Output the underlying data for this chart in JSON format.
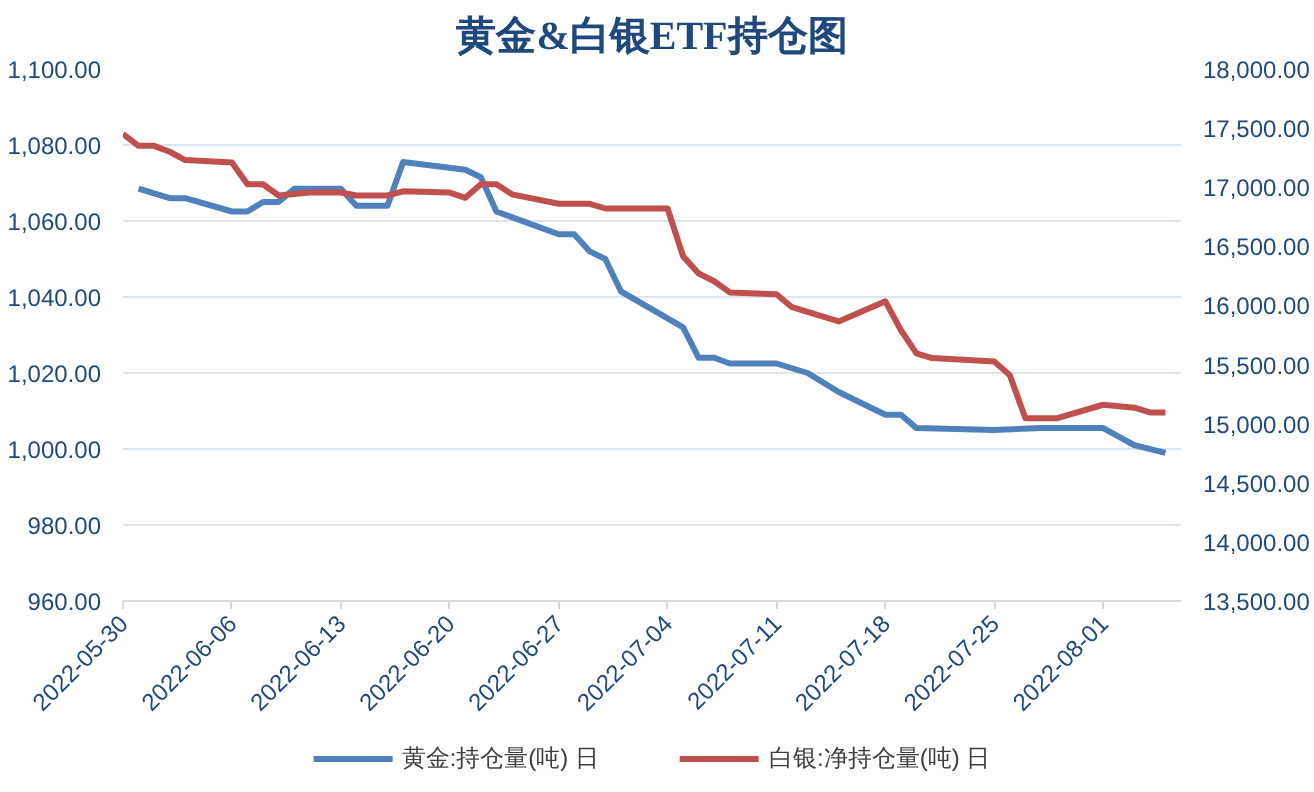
{
  "chart_data": {
    "type": "line",
    "title": "黄金&白银ETF持仓图",
    "xlim": [
      "2022-05-30",
      "2022-08-06"
    ],
    "xticks": [
      "2022-05-30",
      "2022-06-06",
      "2022-06-13",
      "2022-06-20",
      "2022-06-27",
      "2022-07-04",
      "2022-07-11",
      "2022-07-18",
      "2022-07-25",
      "2022-08-01"
    ],
    "ylim": [
      960,
      1100
    ],
    "yticks": [
      {
        "value": 960,
        "label": "960.00"
      },
      {
        "value": 980,
        "label": "980.00"
      },
      {
        "value": 1000,
        "label": "1,000.00"
      },
      {
        "value": 1020,
        "label": "1,020.00"
      },
      {
        "value": 1040,
        "label": "1,040.00"
      },
      {
        "value": 1060,
        "label": "1,060.00"
      },
      {
        "value": 1080,
        "label": "1,080.00"
      },
      {
        "value": 1100,
        "label": "1,100.00"
      }
    ],
    "y2lim": [
      13500,
      18000
    ],
    "y2ticks": [
      {
        "value": 13500,
        "label": "13,500.00"
      },
      {
        "value": 14000,
        "label": "14,000.00"
      },
      {
        "value": 14500,
        "label": "14,500.00"
      },
      {
        "value": 15000,
        "label": "15,000.00"
      },
      {
        "value": 15500,
        "label": "15,500.00"
      },
      {
        "value": 16000,
        "label": "16,000.00"
      },
      {
        "value": 16500,
        "label": "16,500.00"
      },
      {
        "value": 17000,
        "label": "17,000.00"
      },
      {
        "value": 17500,
        "label": "17,500.00"
      },
      {
        "value": 18000,
        "label": "18,000.00"
      }
    ],
    "grid": "y",
    "legend": "bottom",
    "line_style": "solid",
    "marker": "none",
    "series": [
      {
        "name": "黄金:持仓量(吨) 日",
        "color": "#4f81bd",
        "x": [
          "2022-05-31",
          "2022-06-02",
          "2022-06-03",
          "2022-06-06",
          "2022-06-07",
          "2022-06-08",
          "2022-06-09",
          "2022-06-10",
          "2022-06-13",
          "2022-06-14",
          "2022-06-16",
          "2022-06-17",
          "2022-06-21",
          "2022-06-22",
          "2022-06-23",
          "2022-06-27",
          "2022-06-28",
          "2022-06-29",
          "2022-06-30",
          "2022-07-01",
          "2022-07-05",
          "2022-07-06",
          "2022-07-07",
          "2022-07-08",
          "2022-07-11",
          "2022-07-13",
          "2022-07-15",
          "2022-07-18",
          "2022-07-19",
          "2022-07-20",
          "2022-07-25",
          "2022-07-28",
          "2022-08-01",
          "2022-08-03",
          "2022-08-05"
        ],
        "values": [
          1068.5,
          1066,
          1066,
          1062.5,
          1062.5,
          1065,
          1065,
          1068.5,
          1068.5,
          1064,
          1064,
          1075.5,
          1073.5,
          1071.5,
          1062.5,
          1056.5,
          1056.5,
          1052,
          1050,
          1041.5,
          1032,
          1024,
          1024,
          1022.5,
          1022.5,
          1020,
          1015,
          1009,
          1009,
          1005.5,
          1005,
          1005.5,
          1005.5,
          1001,
          999
        ]
      },
      {
        "name": "白银:净持仓量(吨) 日",
        "color": "#c0504d",
        "axis": "y2",
        "x": [
          "2022-05-30",
          "2022-05-31",
          "2022-06-01",
          "2022-06-02",
          "2022-06-03",
          "2022-06-06",
          "2022-06-07",
          "2022-06-08",
          "2022-06-09",
          "2022-06-11",
          "2022-06-13",
          "2022-06-14",
          "2022-06-16",
          "2022-06-17",
          "2022-06-20",
          "2022-06-21",
          "2022-06-22",
          "2022-06-23",
          "2022-06-24",
          "2022-06-27",
          "2022-06-29",
          "2022-06-30",
          "2022-07-04",
          "2022-07-05",
          "2022-07-06",
          "2022-07-07",
          "2022-07-08",
          "2022-07-11",
          "2022-07-12",
          "2022-07-13",
          "2022-07-15",
          "2022-07-18",
          "2022-07-19",
          "2022-07-20",
          "2022-07-21",
          "2022-07-25",
          "2022-07-26",
          "2022-07-27",
          "2022-07-29",
          "2022-08-01",
          "2022-08-03",
          "2022-08-04",
          "2022-08-05"
        ],
        "values": [
          17450,
          17350,
          17350,
          17300,
          17230,
          17210,
          17025,
          17025,
          16930,
          16955,
          16955,
          16930,
          16930,
          16965,
          16955,
          16910,
          17025,
          17025,
          16940,
          16860,
          16860,
          16820,
          16820,
          16415,
          16270,
          16205,
          16110,
          16095,
          15985,
          15945,
          15865,
          16035,
          15790,
          15595,
          15555,
          15525,
          15410,
          15045,
          15045,
          15160,
          15135,
          15095,
          15095
        ]
      }
    ]
  }
}
